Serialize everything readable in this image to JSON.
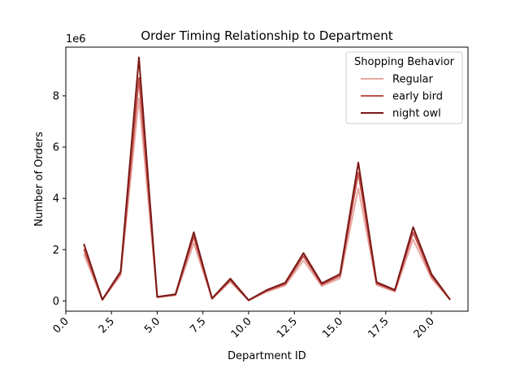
{
  "chart_data": {
    "type": "line",
    "title": "Order Timing Relationship to Department",
    "xlabel": "Department ID",
    "ylabel": "Number of Orders",
    "y_offset_label": "1e6",
    "xlim": [
      0,
      22
    ],
    "ylim": [
      -0.4,
      9.9
    ],
    "x_ticks": [
      0.0,
      2.5,
      5.0,
      7.5,
      10.0,
      12.5,
      15.0,
      17.5,
      20.0
    ],
    "x_tick_labels": [
      "0.0",
      "2.5",
      "5.0",
      "7.5",
      "10.0",
      "12.5",
      "15.0",
      "17.5",
      "20.0"
    ],
    "y_ticks": [
      0,
      2,
      4,
      6,
      8
    ],
    "y_tick_labels": [
      "0",
      "2",
      "4",
      "6",
      "8"
    ],
    "x_tick_rotation": 45,
    "grid": false,
    "legend_title": "Shopping Behavior",
    "legend_position": "top-right",
    "x": [
      1,
      2,
      3,
      4,
      5,
      6,
      7,
      8,
      9,
      10,
      11,
      12,
      13,
      14,
      15,
      16,
      17,
      18,
      19,
      20,
      21
    ],
    "series": [
      {
        "name": "Regular",
        "color": "#e8a8a2",
        "values": [
          1.8,
          0.04,
          1.0,
          7.9,
          0.14,
          0.22,
          2.25,
          0.08,
          0.75,
          0.02,
          0.36,
          0.6,
          1.58,
          0.58,
          0.88,
          4.4,
          0.62,
          0.36,
          2.4,
          0.88,
          0.06
        ]
      },
      {
        "name": "early bird",
        "color": "#c4504c",
        "values": [
          2.0,
          0.05,
          1.08,
          8.7,
          0.15,
          0.24,
          2.5,
          0.09,
          0.81,
          0.02,
          0.4,
          0.66,
          1.75,
          0.64,
          0.97,
          5.0,
          0.68,
          0.4,
          2.68,
          0.97,
          0.07
        ]
      },
      {
        "name": "night owl",
        "color": "#7a1a16",
        "values": [
          2.2,
          0.05,
          1.15,
          9.5,
          0.16,
          0.26,
          2.68,
          0.1,
          0.87,
          0.03,
          0.43,
          0.71,
          1.87,
          0.69,
          1.05,
          5.4,
          0.73,
          0.43,
          2.88,
          1.05,
          0.07
        ]
      }
    ]
  }
}
